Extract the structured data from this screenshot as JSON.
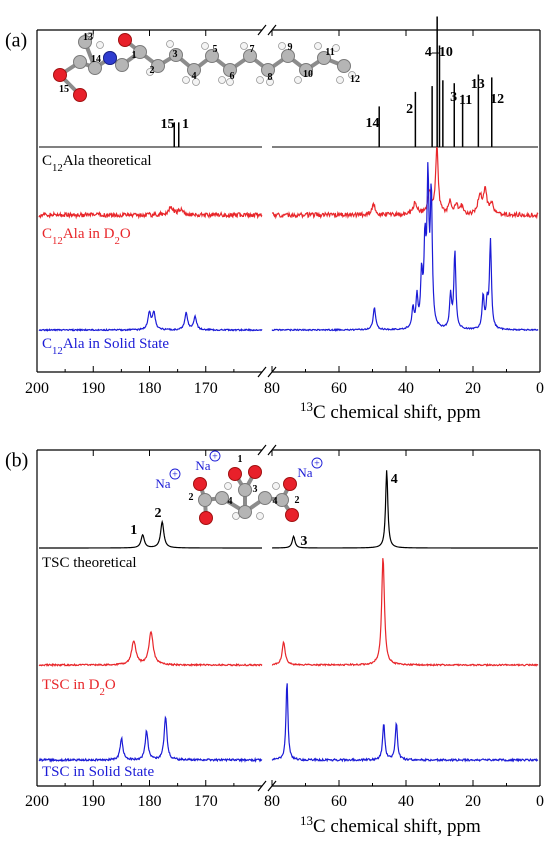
{
  "chart_data": [
    {
      "type": "line",
      "panel_label": "(a)",
      "xlabel_sup": "13",
      "xlabel": "C  chemical shift, ppm",
      "x_segments": [
        [
          200,
          160
        ],
        [
          80,
          0
        ]
      ],
      "xticks": [
        200,
        190,
        180,
        170,
        80,
        60,
        40,
        20,
        0
      ],
      "yticks": [],
      "series": [
        {
          "name_parts": [
            "C",
            "12",
            "Ala theoretical"
          ],
          "color": "#000000",
          "style": "sticks",
          "baseline": 0,
          "peaks": [
            {
              "x": 175.6,
              "h": 0.17
            },
            {
              "x": 174.8,
              "h": 0.17
            },
            {
              "x": 48.0,
              "h": 0.28
            },
            {
              "x": 37.2,
              "h": 0.38
            },
            {
              "x": 32.2,
              "h": 0.42
            },
            {
              "x": 30.7,
              "h": 0.9
            },
            {
              "x": 30.0,
              "h": 0.7
            },
            {
              "x": 29.0,
              "h": 0.46
            },
            {
              "x": 25.6,
              "h": 0.44
            },
            {
              "x": 23.1,
              "h": 0.36
            },
            {
              "x": 18.4,
              "h": 0.5
            },
            {
              "x": 14.4,
              "h": 0.48
            }
          ]
        },
        {
          "name_parts": [
            "C",
            "12",
            "Ala in D",
            "2",
            "O"
          ],
          "color": "#e8262a",
          "style": "broad",
          "baseline": 0,
          "noise": 0.014,
          "peaks": [
            {
              "x": 176.3,
              "h": 0.05,
              "w": 0.5
            },
            {
              "x": 174.6,
              "h": 0.03,
              "w": 0.5
            },
            {
              "x": 49.5,
              "h": 0.06,
              "w": 0.7
            },
            {
              "x": 37.0,
              "h": 0.07,
              "w": 0.7
            },
            {
              "x": 32.6,
              "h": 0.14,
              "w": 0.7
            },
            {
              "x": 30.4,
              "h": 0.42,
              "w": 0.45
            },
            {
              "x": 26.5,
              "h": 0.08,
              "w": 0.6
            },
            {
              "x": 24.6,
              "h": 0.06,
              "w": 0.6
            },
            {
              "x": 22.9,
              "h": 0.05,
              "w": 0.6
            },
            {
              "x": 17.5,
              "h": 0.12,
              "w": 0.7
            },
            {
              "x": 15.9,
              "h": 0.14,
              "w": 0.6
            },
            {
              "x": 14.0,
              "h": 0.07,
              "w": 0.6
            }
          ]
        },
        {
          "name_parts": [
            "C",
            "12",
            "Ala in Solid State"
          ],
          "color": "#1b1bd6",
          "style": "sharp",
          "baseline": 0,
          "noise": 0.004,
          "peaks": [
            {
              "x": 180.2,
              "h": 0.1,
              "w": 0.3
            },
            {
              "x": 179.4,
              "h": 0.1,
              "w": 0.3
            },
            {
              "x": 173.6,
              "h": 0.1,
              "w": 0.3
            },
            {
              "x": 172.0,
              "h": 0.08,
              "w": 0.3
            },
            {
              "x": 49.2,
              "h": 0.13,
              "w": 0.45
            },
            {
              "x": 37.6,
              "h": 0.12,
              "w": 0.35
            },
            {
              "x": 36.4,
              "h": 0.18,
              "w": 0.35
            },
            {
              "x": 35.0,
              "h": 0.3,
              "w": 0.35
            },
            {
              "x": 34.0,
              "h": 0.47,
              "w": 0.35
            },
            {
              "x": 33.1,
              "h": 0.84,
              "w": 0.35
            },
            {
              "x": 32.1,
              "h": 0.78,
              "w": 0.35
            },
            {
              "x": 26.3,
              "h": 0.2,
              "w": 0.35
            },
            {
              "x": 25.0,
              "h": 0.46,
              "w": 0.35
            },
            {
              "x": 16.5,
              "h": 0.2,
              "w": 0.35
            },
            {
              "x": 15.3,
              "h": 0.15,
              "w": 0.35
            },
            {
              "x": 14.3,
              "h": 0.52,
              "w": 0.35
            }
          ]
        }
      ],
      "peak_labels": [
        {
          "text": "15",
          "x": 176.8
        },
        {
          "text": "1",
          "x": 173.6
        },
        {
          "text": "14",
          "x": 50.0
        },
        {
          "text": "2",
          "x": 38.9
        },
        {
          "text": "4–10",
          "x": 30.2,
          "bold_high": true
        },
        {
          "text": "3",
          "x": 25.8
        },
        {
          "text": "11",
          "x": 22.2
        },
        {
          "text": "13",
          "x": 18.6
        },
        {
          "text": "12",
          "x": 12.8
        }
      ],
      "molecule_atoms": [
        "13",
        "1",
        "3",
        "5",
        "7",
        "9",
        "11",
        "14",
        "2",
        "4",
        "6",
        "8",
        "10",
        "12",
        "15"
      ]
    },
    {
      "type": "line",
      "panel_label": "(b)",
      "xlabel_sup": "13",
      "xlabel": "C  chemical shift, ppm",
      "x_segments": [
        [
          200,
          160
        ],
        [
          80,
          0
        ]
      ],
      "xticks": [
        200,
        190,
        180,
        170,
        80,
        60,
        40,
        20,
        0
      ],
      "yticks": [],
      "series": [
        {
          "name_parts": [
            "TSC  theoretical"
          ],
          "color": "#000000",
          "style": "sharp",
          "baseline": 0,
          "noise": 0,
          "peaks": [
            {
              "x": 181.4,
              "h": 0.1,
              "w": 0.35
            },
            {
              "x": 177.9,
              "h": 0.2,
              "w": 0.35
            },
            {
              "x": 73.5,
              "h": 0.09,
              "w": 0.5
            },
            {
              "x": 45.5,
              "h": 0.6,
              "w": 0.4
            }
          ]
        },
        {
          "name_parts": [
            "TSC in D",
            "2",
            "O"
          ],
          "color": "#e8262a",
          "style": "sharp",
          "baseline": 0,
          "noise": 0.005,
          "peaks": [
            {
              "x": 183.0,
              "h": 0.16,
              "w": 0.45
            },
            {
              "x": 179.9,
              "h": 0.22,
              "w": 0.45
            },
            {
              "x": 76.5,
              "h": 0.15,
              "w": 0.55
            },
            {
              "x": 46.6,
              "h": 0.72,
              "w": 0.5
            }
          ]
        },
        {
          "name_parts": [
            "TSC in Solid State"
          ],
          "color": "#1b1bd6",
          "style": "sharp",
          "baseline": 0,
          "noise": 0.007,
          "peaks": [
            {
              "x": 185.2,
              "h": 0.15,
              "w": 0.3
            },
            {
              "x": 180.7,
              "h": 0.2,
              "w": 0.3
            },
            {
              "x": 177.3,
              "h": 0.3,
              "w": 0.3
            },
            {
              "x": 75.5,
              "h": 0.55,
              "w": 0.35
            },
            {
              "x": 46.4,
              "h": 0.25,
              "w": 0.4
            },
            {
              "x": 42.6,
              "h": 0.26,
              "w": 0.4
            }
          ]
        }
      ],
      "peak_labels": [
        {
          "text": "1",
          "x": 182.8
        },
        {
          "text": "2",
          "x": 178.5
        },
        {
          "text": "3",
          "x": 70.5
        },
        {
          "text": "4",
          "x": 43.5
        }
      ],
      "molecule_atoms": [
        "1",
        "2",
        "3",
        "4",
        "4",
        "2"
      ],
      "ion_label": "Na",
      "ion_charge": "+"
    }
  ]
}
